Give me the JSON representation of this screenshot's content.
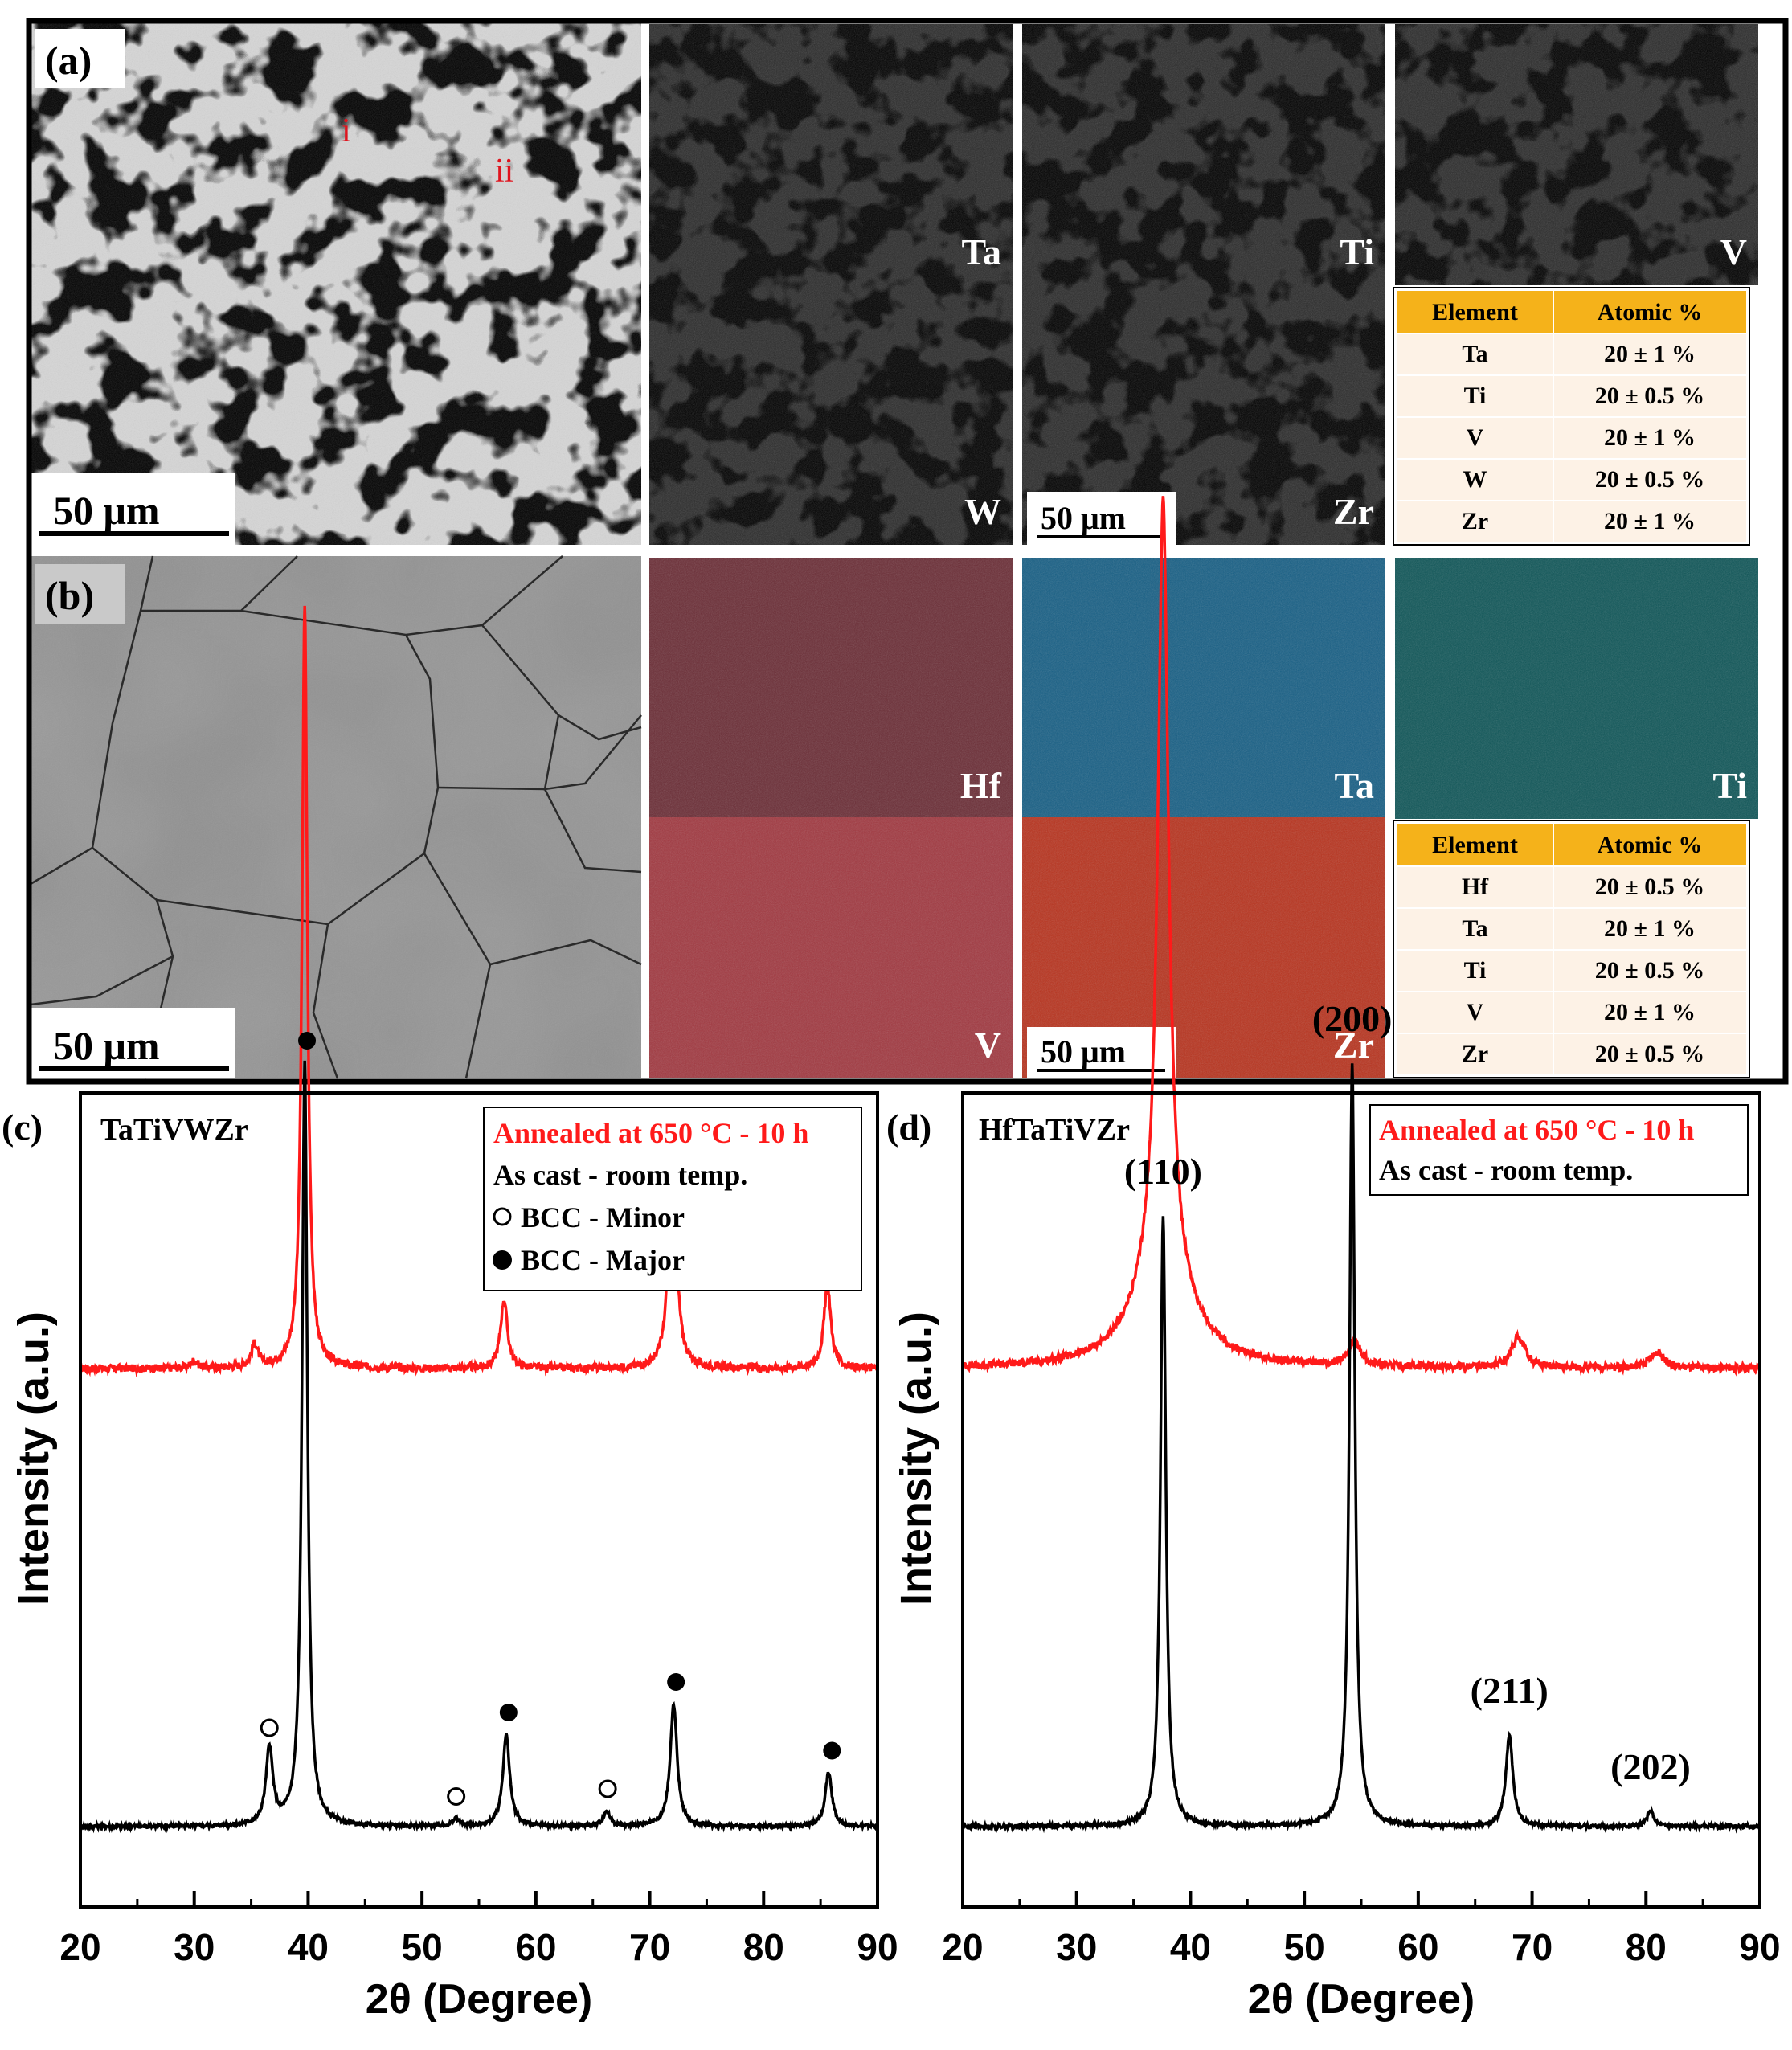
{
  "panel_a": {
    "label": "(a)",
    "scale_bar": "50 μm",
    "point_labels": [
      "i",
      "ii"
    ],
    "maps": [
      {
        "element": "Ta",
        "color": "#4f87a6"
      },
      {
        "element": "Ti",
        "color": "#3f9c96"
      },
      {
        "element": "V",
        "color": "#c47d82"
      },
      {
        "element": "W",
        "color": "#d55a2c"
      },
      {
        "element": "Zr",
        "color": "#f37c6b"
      }
    ],
    "map_scale_bar": "50 μm",
    "table": {
      "headers": [
        "Element",
        "Atomic %"
      ],
      "rows": [
        [
          "Ta",
          "20 ± 1 %"
        ],
        [
          "Ti",
          "20 ± 0.5 %"
        ],
        [
          "V",
          "20 ± 1 %"
        ],
        [
          "W",
          "20 ± 0.5 %"
        ],
        [
          "Zr",
          "20 ± 1 %"
        ]
      ]
    }
  },
  "panel_b": {
    "label": "(b)",
    "scale_bar": "50 μm",
    "maps": [
      {
        "element": "Hf",
        "color": "#6b2d36"
      },
      {
        "element": "Ta",
        "color": "#175f85"
      },
      {
        "element": "Ti",
        "color": "#0f5658"
      },
      {
        "element": "V",
        "color": "#a13840"
      },
      {
        "element": "Zr",
        "color": "#b8331e"
      }
    ],
    "map_scale_bar": "50 μm",
    "table": {
      "headers": [
        "Element",
        "Atomic %"
      ],
      "rows": [
        [
          "Hf",
          "20 ± 0.5 %"
        ],
        [
          "Ta",
          "20 ± 1 %"
        ],
        [
          "Ti",
          "20 ± 0.5 %"
        ],
        [
          "V",
          "20 ± 1 %"
        ],
        [
          "Zr",
          "20 ± 0.5 %"
        ]
      ]
    }
  },
  "colors": {
    "table_header": "#f5b21a",
    "table_row": "#fdf2e6",
    "annealed": "#ff1a1a",
    "as_cast": "#000000",
    "phase_label": "#e0141e"
  },
  "chart_data": [
    {
      "panel_label": "(c)",
      "type": "line",
      "title": "TaTiVWZr",
      "xlabel": "2θ (Degree)",
      "ylabel": "Intensity (a.u.)",
      "xlim": [
        20,
        90
      ],
      "xticks": [
        20,
        30,
        40,
        50,
        60,
        70,
        80,
        90
      ],
      "legend": {
        "entries": [
          "Annealed at 650 °C - 10 h",
          "As cast - room temp.",
          "BCC - Minor",
          "BCC - Major"
        ],
        "placement": "top-right"
      },
      "series": [
        {
          "name": "Annealed at 650 °C - 10 h",
          "offset": 60,
          "peaks": [
            [
              30.0,
              1
            ],
            [
              35.3,
              3
            ],
            [
              39.7,
              100
            ],
            [
              57.2,
              9
            ],
            [
              72.0,
              33
            ],
            [
              85.6,
              11
            ]
          ]
        },
        {
          "name": "As cast - room temp.",
          "offset": 0,
          "peaks": [
            [
              36.6,
              10
            ],
            [
              39.7,
              100
            ],
            [
              53.0,
              1
            ],
            [
              57.4,
              12
            ],
            [
              66.2,
              2
            ],
            [
              72.1,
              16
            ],
            [
              85.7,
              7
            ]
          ]
        }
      ],
      "markers": [
        {
          "x": 36.6,
          "type": "BCC - Minor"
        },
        {
          "x": 39.9,
          "type": "BCC - Major"
        },
        {
          "x": 53.0,
          "type": "BCC - Minor"
        },
        {
          "x": 57.6,
          "type": "BCC - Major"
        },
        {
          "x": 66.3,
          "type": "BCC - Minor"
        },
        {
          "x": 72.3,
          "type": "BCC - Major"
        },
        {
          "x": 86.0,
          "type": "BCC - Major"
        }
      ]
    },
    {
      "panel_label": "(d)",
      "type": "line",
      "title": "HfTaTiVZr",
      "xlabel": "2θ (Degree)",
      "ylabel": "Intensity (a.u.)",
      "xlim": [
        20,
        90
      ],
      "xticks": [
        20,
        30,
        40,
        50,
        60,
        70,
        80,
        90
      ],
      "legend": {
        "entries": [
          "Annealed at 650 °C - 10 h",
          "As cast - room temp."
        ],
        "placement": "top-right"
      },
      "series": [
        {
          "name": "Annealed at 650 °C - 10 h",
          "offset": 60,
          "peaks": [
            [
              37.6,
              100
            ],
            [
              54.4,
              3
            ],
            [
              68.8,
              4
            ],
            [
              81.0,
              2
            ]
          ]
        },
        {
          "name": "As cast - room temp.",
          "offset": 0,
          "peaks": [
            [
              37.6,
              80
            ],
            [
              54.2,
              100
            ],
            [
              68.0,
              12
            ],
            [
              80.4,
              2
            ]
          ]
        }
      ],
      "peak_labels": [
        {
          "x": 37.6,
          "text": "(110)"
        },
        {
          "x": 54.2,
          "text": "(200)"
        },
        {
          "x": 68.0,
          "text": "(211)"
        },
        {
          "x": 80.4,
          "text": "(202)"
        }
      ]
    }
  ]
}
